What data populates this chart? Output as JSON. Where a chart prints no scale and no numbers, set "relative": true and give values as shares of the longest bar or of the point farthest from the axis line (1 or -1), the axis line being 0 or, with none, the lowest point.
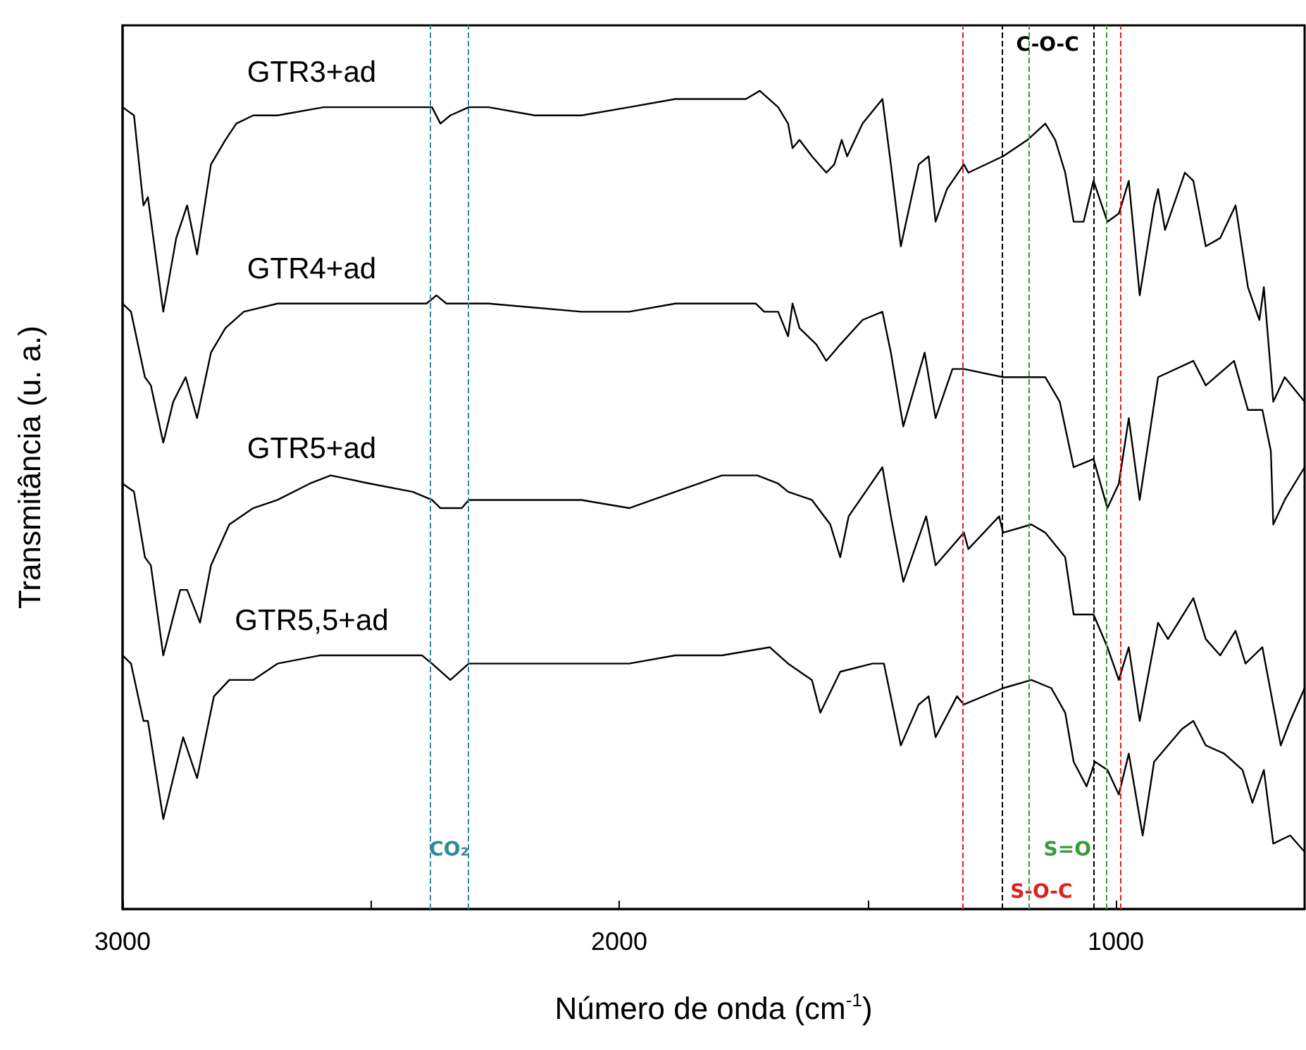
{
  "chart_data": {
    "type": "line",
    "relative": true,
    "xlabel": "Número de onda (cm$^{-1}$)",
    "ylabel": "Transmitância (u. a.)",
    "xlim": [
      3000,
      620
    ],
    "xticks": [
      3000,
      {
        "value": 2500,
        "label": null
      },
      2000,
      {
        "value": 1500,
        "label": null
      },
      1000
    ],
    "tick_labels": "x",
    "grid": false,
    "legend": false,
    "marker": "none",
    "line_style": "solid",
    "series": [
      {
        "name": "GTR3+ad",
        "color": "#000000",
        "x": [
          3000,
          2977,
          2958,
          2949,
          2918,
          2892,
          2870,
          2850,
          2822,
          2793,
          2771,
          2737,
          2688,
          2595,
          2502,
          2416,
          2377,
          2360,
          2340,
          2303,
          2263,
          2170,
          2076,
          1980,
          1887,
          1745,
          1717,
          1680,
          1660,
          1651,
          1637,
          1612,
          1583,
          1567,
          1552,
          1541,
          1510,
          1470,
          1453,
          1433,
          1397,
          1377,
          1363,
          1340,
          1306,
          1297,
          1227,
          1178,
          1142,
          1122,
          1102,
          1085,
          1065,
          1045,
          1017,
          994,
          974,
          952,
          923,
          915,
          901,
          861,
          844,
          819,
          790,
          759,
          734,
          711,
          702,
          683,
          660,
          620
        ],
        "values": [
          0.98,
          0.97,
          0.86,
          0.87,
          0.73,
          0.82,
          0.86,
          0.8,
          0.91,
          0.94,
          0.96,
          0.97,
          0.97,
          0.98,
          0.98,
          0.98,
          0.98,
          0.96,
          0.97,
          0.98,
          0.98,
          0.97,
          0.97,
          0.98,
          0.99,
          0.99,
          1.0,
          0.98,
          0.96,
          0.93,
          0.94,
          0.92,
          0.9,
          0.91,
          0.94,
          0.92,
          0.96,
          0.99,
          0.91,
          0.81,
          0.91,
          0.92,
          0.84,
          0.88,
          0.91,
          0.9,
          0.92,
          0.94,
          0.96,
          0.94,
          0.9,
          0.84,
          0.84,
          0.89,
          0.84,
          0.85,
          0.89,
          0.75,
          0.86,
          0.88,
          0.83,
          0.9,
          0.89,
          0.81,
          0.82,
          0.86,
          0.76,
          0.72,
          0.76,
          0.62,
          0.65,
          0.62
        ]
      },
      {
        "name": "GTR4+ad",
        "color": "#000000",
        "x": [
          3000,
          2983,
          2955,
          2943,
          2918,
          2898,
          2873,
          2850,
          2822,
          2793,
          2756,
          2688,
          2595,
          2453,
          2388,
          2368,
          2348,
          2303,
          2263,
          2076,
          1980,
          1887,
          1725,
          1708,
          1680,
          1660,
          1651,
          1637,
          1603,
          1583,
          1555,
          1510,
          1470,
          1453,
          1428,
          1385,
          1363,
          1329,
          1306,
          1227,
          1178,
          1142,
          1113,
          1085,
          1045,
          1017,
          994,
          974,
          952,
          915,
          844,
          819,
          762,
          734,
          705,
          688,
          683,
          660,
          620
        ],
        "values": [
          0.74,
          0.73,
          0.65,
          0.64,
          0.57,
          0.62,
          0.65,
          0.6,
          0.68,
          0.71,
          0.73,
          0.74,
          0.74,
          0.74,
          0.74,
          0.75,
          0.74,
          0.74,
          0.74,
          0.73,
          0.73,
          0.74,
          0.74,
          0.73,
          0.73,
          0.7,
          0.74,
          0.71,
          0.69,
          0.67,
          0.69,
          0.72,
          0.73,
          0.68,
          0.59,
          0.68,
          0.6,
          0.66,
          0.66,
          0.65,
          0.65,
          0.65,
          0.62,
          0.54,
          0.55,
          0.49,
          0.52,
          0.6,
          0.5,
          0.65,
          0.67,
          0.64,
          0.67,
          0.61,
          0.61,
          0.56,
          0.47,
          0.5,
          0.54
        ]
      },
      {
        "name": "GTR5+ad",
        "color": "#000000",
        "x": [
          3000,
          2977,
          2955,
          2943,
          2918,
          2884,
          2870,
          2844,
          2822,
          2785,
          2737,
          2688,
          2623,
          2581,
          2502,
          2416,
          2377,
          2360,
          2317,
          2303,
          2170,
          2076,
          1980,
          1887,
          1793,
          1722,
          1680,
          1660,
          1612,
          1575,
          1555,
          1538,
          1470,
          1453,
          1428,
          1382,
          1363,
          1306,
          1297,
          1235,
          1227,
          1170,
          1142,
          1102,
          1085,
          1045,
          1017,
          994,
          974,
          952,
          915,
          895,
          844,
          819,
          790,
          759,
          739,
          705,
          668,
          649,
          620
        ],
        "values": [
          0.52,
          0.51,
          0.43,
          0.42,
          0.31,
          0.39,
          0.39,
          0.35,
          0.42,
          0.47,
          0.49,
          0.5,
          0.52,
          0.53,
          0.52,
          0.51,
          0.5,
          0.49,
          0.49,
          0.5,
          0.5,
          0.5,
          0.49,
          0.51,
          0.53,
          0.53,
          0.52,
          0.51,
          0.5,
          0.47,
          0.43,
          0.48,
          0.54,
          0.48,
          0.4,
          0.48,
          0.42,
          0.46,
          0.44,
          0.48,
          0.46,
          0.47,
          0.46,
          0.43,
          0.36,
          0.36,
          0.32,
          0.28,
          0.32,
          0.23,
          0.35,
          0.33,
          0.38,
          0.33,
          0.31,
          0.34,
          0.3,
          0.32,
          0.2,
          0.23,
          0.27
        ]
      },
      {
        "name": "GTR5,5+ad",
        "color": "#000000",
        "x": [
          3000,
          2983,
          2958,
          2949,
          2918,
          2878,
          2850,
          2816,
          2785,
          2737,
          2688,
          2603,
          2502,
          2397,
          2377,
          2340,
          2303,
          2170,
          2076,
          1980,
          1887,
          1793,
          1697,
          1660,
          1612,
          1595,
          1555,
          1490,
          1467,
          1433,
          1397,
          1377,
          1363,
          1320,
          1306,
          1227,
          1170,
          1130,
          1102,
          1085,
          1059,
          1042,
          1017,
          994,
          974,
          946,
          923,
          867,
          844,
          819,
          782,
          745,
          725,
          702,
          683,
          649,
          620
        ],
        "values": [
          0.31,
          0.3,
          0.23,
          0.23,
          0.11,
          0.21,
          0.16,
          0.26,
          0.28,
          0.28,
          0.3,
          0.31,
          0.31,
          0.31,
          0.3,
          0.28,
          0.3,
          0.3,
          0.3,
          0.3,
          0.31,
          0.31,
          0.32,
          0.3,
          0.28,
          0.24,
          0.29,
          0.3,
          0.3,
          0.2,
          0.25,
          0.26,
          0.21,
          0.26,
          0.25,
          0.27,
          0.28,
          0.27,
          0.24,
          0.18,
          0.15,
          0.18,
          0.17,
          0.14,
          0.19,
          0.09,
          0.18,
          0.22,
          0.23,
          0.2,
          0.19,
          0.17,
          0.13,
          0.17,
          0.08,
          0.09,
          0.07
        ]
      }
    ],
    "ref_lines": [
      {
        "axis": "x",
        "value": 2380,
        "label": "CO₂",
        "color": "#2e8b9a",
        "line_style": "dashed"
      },
      {
        "axis": "x",
        "value": 2305,
        "color": "#2e8b9a",
        "line_style": "dashed"
      },
      {
        "axis": "x",
        "value": 1175,
        "label": "S=O",
        "color": "#3a9a3a",
        "line_style": "dashed"
      },
      {
        "axis": "x",
        "value": 1020,
        "color": "#3a9a3a",
        "line_style": "dashed"
      },
      {
        "axis": "x",
        "value": 1310,
        "label": "S-O-C",
        "color": "#e02020",
        "line_style": "dashed"
      },
      {
        "axis": "x",
        "value": 990,
        "color": "#e02020",
        "line_style": "dashed"
      },
      {
        "axis": "x",
        "value": 1230,
        "label": "C-O-C",
        "color": "#000000",
        "line_style": "dashed"
      },
      {
        "axis": "x",
        "value": 1045,
        "color": "#000000",
        "line_style": "dashed"
      }
    ]
  }
}
